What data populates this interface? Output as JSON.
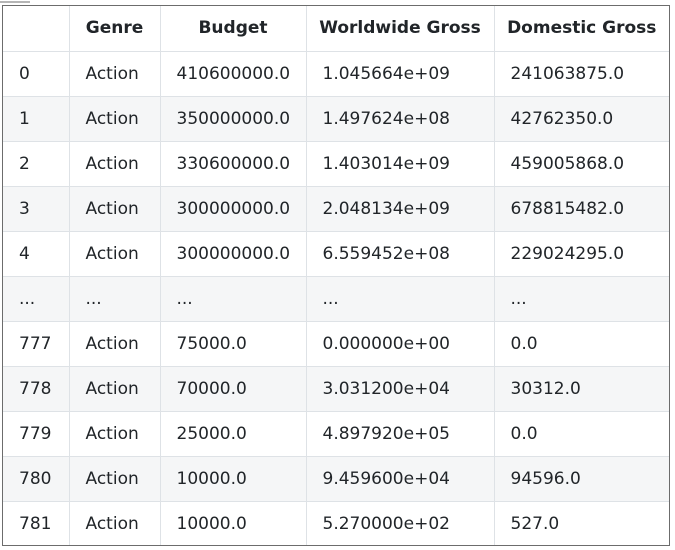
{
  "table": {
    "columns": [
      "",
      "Genre",
      "Budget",
      "Worldwide Gross",
      "Domestic Gross"
    ],
    "rows": [
      [
        "0",
        "Action",
        "410600000.0",
        "1.045664e+09",
        "241063875.0"
      ],
      [
        "1",
        "Action",
        "350000000.0",
        "1.497624e+08",
        "42762350.0"
      ],
      [
        "2",
        "Action",
        "330600000.0",
        "1.403014e+09",
        "459005868.0"
      ],
      [
        "3",
        "Action",
        "300000000.0",
        "2.048134e+09",
        "678815482.0"
      ],
      [
        "4",
        "Action",
        "300000000.0",
        "6.559452e+08",
        "229024295.0"
      ],
      [
        "...",
        "...",
        "...",
        "...",
        "..."
      ],
      [
        "777",
        "Action",
        "75000.0",
        "0.000000e+00",
        "0.0"
      ],
      [
        "778",
        "Action",
        "70000.0",
        "3.031200e+04",
        "30312.0"
      ],
      [
        "779",
        "Action",
        "25000.0",
        "4.897920e+05",
        "0.0"
      ],
      [
        "780",
        "Action",
        "10000.0",
        "9.459600e+04",
        "94596.0"
      ],
      [
        "781",
        "Action",
        "10000.0",
        "5.270000e+02",
        "527.0"
      ]
    ]
  }
}
